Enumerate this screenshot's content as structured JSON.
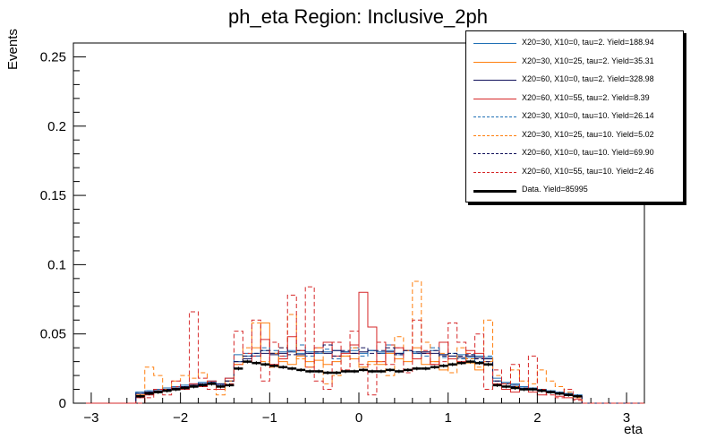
{
  "chart_data": {
    "type": "histogram",
    "title": "ph_eta Region: Inclusive_2ph",
    "xlabel": "eta",
    "ylabel": "Events",
    "xlim": [
      -3.2,
      3.2
    ],
    "ylim": [
      0,
      0.26
    ],
    "xticks": [
      -3,
      -2,
      -1,
      0,
      1,
      2,
      3
    ],
    "xtick_labels": [
      "−3",
      "−2",
      "−1",
      "0",
      "1",
      "2",
      "3"
    ],
    "yticks": [
      0,
      0.05,
      0.1,
      0.15,
      0.2,
      0.25
    ],
    "ytick_labels": [
      "0",
      "0.05",
      "0.1",
      "0.15",
      "0.2",
      "0.25"
    ],
    "bins": {
      "min": -2.5,
      "max": 2.5,
      "count": 50
    },
    "series": [
      {
        "name": "X20=30, X10=0, tau=2. Yield=188.94",
        "color": "#1f6fb5",
        "style": "solid",
        "values": [
          0.008,
          0.009,
          0.01,
          0.011,
          0.012,
          0.013,
          0.014,
          0.015,
          0.016,
          0.014,
          0.018,
          0.035,
          0.034,
          0.036,
          0.038,
          0.036,
          0.037,
          0.038,
          0.036,
          0.037,
          0.036,
          0.037,
          0.038,
          0.037,
          0.038,
          0.036,
          0.038,
          0.037,
          0.038,
          0.036,
          0.038,
          0.037,
          0.036,
          0.038,
          0.035,
          0.034,
          0.035,
          0.033,
          0.034,
          0.033,
          0.018,
          0.015,
          0.014,
          0.012,
          0.011,
          0.01,
          0.009,
          0.008,
          0.007,
          0.006
        ]
      },
      {
        "name": "X20=30, X10=25, tau=2. Yield=35.31",
        "color": "#ff7f0e",
        "style": "solid",
        "values": [
          0.006,
          0.008,
          0.009,
          0.01,
          0.011,
          0.012,
          0.013,
          0.012,
          0.014,
          0.012,
          0.016,
          0.03,
          0.032,
          0.04,
          0.058,
          0.036,
          0.03,
          0.028,
          0.034,
          0.03,
          0.031,
          0.028,
          0.03,
          0.034,
          0.032,
          0.026,
          0.03,
          0.028,
          0.036,
          0.032,
          0.03,
          0.04,
          0.028,
          0.03,
          0.024,
          0.028,
          0.033,
          0.029,
          0.024,
          0.03,
          0.016,
          0.014,
          0.012,
          0.011,
          0.01,
          0.009,
          0.008,
          0.007,
          0.006,
          0.005
        ]
      },
      {
        "name": "X20=60, X10=0, tau=2. Yield=328.98",
        "color": "#10105a",
        "style": "solid",
        "values": [
          0.007,
          0.008,
          0.009,
          0.01,
          0.011,
          0.012,
          0.013,
          0.014,
          0.015,
          0.014,
          0.016,
          0.03,
          0.032,
          0.034,
          0.036,
          0.035,
          0.036,
          0.037,
          0.035,
          0.036,
          0.037,
          0.036,
          0.038,
          0.037,
          0.036,
          0.037,
          0.038,
          0.036,
          0.037,
          0.036,
          0.038,
          0.036,
          0.037,
          0.036,
          0.035,
          0.034,
          0.033,
          0.034,
          0.033,
          0.032,
          0.016,
          0.014,
          0.013,
          0.011,
          0.01,
          0.009,
          0.008,
          0.007,
          0.006,
          0.005
        ]
      },
      {
        "name": "X20=60, X10=55, tau=2. Yield=8.39",
        "color": "#d62728",
        "style": "solid",
        "values": [
          0.004,
          0.006,
          0.008,
          0.01,
          0.012,
          0.01,
          0.014,
          0.012,
          0.016,
          0.01,
          0.018,
          0.028,
          0.03,
          0.034,
          0.046,
          0.028,
          0.032,
          0.048,
          0.038,
          0.026,
          0.04,
          0.044,
          0.034,
          0.036,
          0.042,
          0.08,
          0.055,
          0.03,
          0.042,
          0.04,
          0.038,
          0.032,
          0.036,
          0.028,
          0.044,
          0.032,
          0.03,
          0.038,
          0.036,
          0.028,
          0.014,
          0.01,
          0.008,
          0.01,
          0.008,
          0.006,
          0.008,
          0.005,
          0.004,
          0.003
        ]
      },
      {
        "name": "X20=30, X10=0, tau=10. Yield=26.14",
        "color": "#1f6fb5",
        "style": "dashed",
        "values": [
          0.008,
          0.009,
          0.01,
          0.011,
          0.012,
          0.013,
          0.012,
          0.014,
          0.015,
          0.013,
          0.016,
          0.03,
          0.036,
          0.034,
          0.04,
          0.038,
          0.034,
          0.037,
          0.042,
          0.034,
          0.036,
          0.039,
          0.032,
          0.037,
          0.04,
          0.034,
          0.038,
          0.036,
          0.042,
          0.035,
          0.038,
          0.036,
          0.034,
          0.04,
          0.033,
          0.036,
          0.032,
          0.035,
          0.03,
          0.034,
          0.016,
          0.014,
          0.013,
          0.011,
          0.01,
          0.009,
          0.008,
          0.007,
          0.006,
          0.005
        ]
      },
      {
        "name": "X20=30, X10=25, tau=10. Yield=5.02",
        "color": "#ff7f0e",
        "style": "dashed",
        "values": [
          0.0,
          0.026,
          0.02,
          0.01,
          0.016,
          0.02,
          0.018,
          0.022,
          0.014,
          0.006,
          0.016,
          0.028,
          0.04,
          0.058,
          0.03,
          0.026,
          0.04,
          0.064,
          0.032,
          0.026,
          0.04,
          0.014,
          0.02,
          0.034,
          0.04,
          0.026,
          0.028,
          0.03,
          0.02,
          0.048,
          0.038,
          0.088,
          0.044,
          0.03,
          0.036,
          0.022,
          0.04,
          0.032,
          0.026,
          0.06,
          0.02,
          0.014,
          0.024,
          0.016,
          0.014,
          0.024,
          0.016,
          0.012,
          0.008,
          0.004
        ]
      },
      {
        "name": "X20=60, X10=0, tau=10. Yield=69.90",
        "color": "#10105a",
        "style": "dashed",
        "values": [
          0.007,
          0.008,
          0.009,
          0.01,
          0.011,
          0.012,
          0.013,
          0.014,
          0.015,
          0.013,
          0.016,
          0.03,
          0.034,
          0.036,
          0.038,
          0.036,
          0.04,
          0.035,
          0.038,
          0.036,
          0.037,
          0.042,
          0.034,
          0.038,
          0.036,
          0.04,
          0.036,
          0.038,
          0.04,
          0.035,
          0.038,
          0.037,
          0.036,
          0.038,
          0.034,
          0.036,
          0.034,
          0.035,
          0.032,
          0.03,
          0.016,
          0.014,
          0.012,
          0.011,
          0.01,
          0.009,
          0.008,
          0.007,
          0.006,
          0.005
        ]
      },
      {
        "name": "X20=60, X10=55, tau=10. Yield=2.46",
        "color": "#d62728",
        "style": "dashed",
        "values": [
          0.0,
          0.004,
          0.01,
          0.006,
          0.016,
          0.01,
          0.066,
          0.018,
          0.01,
          0.012,
          0.014,
          0.052,
          0.036,
          0.06,
          0.016,
          0.044,
          0.034,
          0.078,
          0.038,
          0.084,
          0.016,
          0.01,
          0.044,
          0.024,
          0.052,
          0.028,
          0.006,
          0.044,
          0.028,
          0.04,
          0.022,
          0.06,
          0.038,
          0.028,
          0.03,
          0.058,
          0.044,
          0.036,
          0.05,
          0.01,
          0.024,
          0.014,
          0.028,
          0.01,
          0.034,
          0.01,
          0.006,
          0.004,
          0.01,
          0.002
        ]
      },
      {
        "name": "Data. Yield=85995",
        "color": "#000000",
        "style": "data",
        "values": [
          0.005,
          0.007,
          0.008,
          0.009,
          0.01,
          0.011,
          0.012,
          0.013,
          0.014,
          0.012,
          0.013,
          0.025,
          0.03,
          0.029,
          0.028,
          0.027,
          0.026,
          0.025,
          0.024,
          0.023,
          0.023,
          0.022,
          0.022,
          0.023,
          0.023,
          0.024,
          0.023,
          0.023,
          0.024,
          0.023,
          0.024,
          0.025,
          0.025,
          0.026,
          0.027,
          0.028,
          0.029,
          0.03,
          0.029,
          0.028,
          0.013,
          0.012,
          0.011,
          0.01,
          0.01,
          0.009,
          0.008,
          0.007,
          0.006,
          0.005
        ]
      }
    ]
  }
}
